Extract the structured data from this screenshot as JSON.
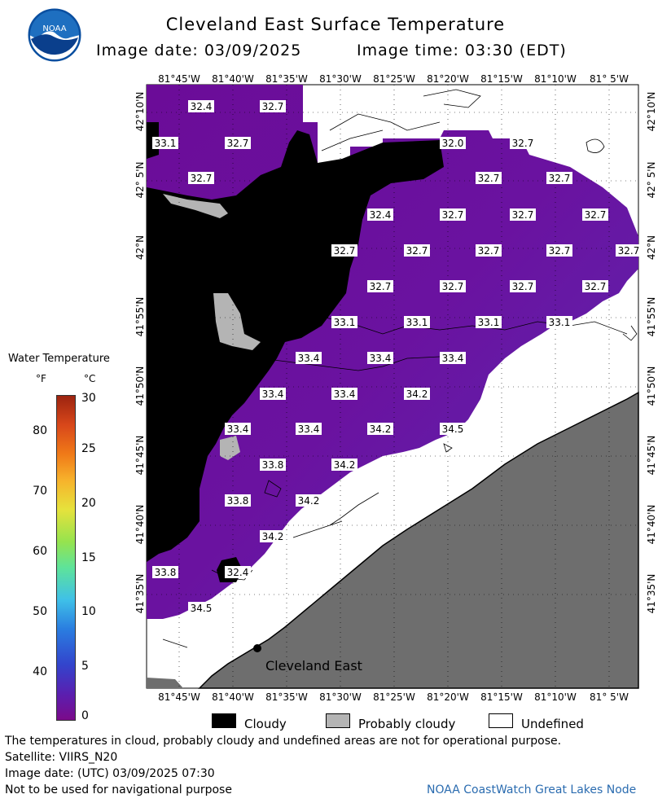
{
  "header": {
    "title": "Cleveland East Surface Temperature",
    "image_date": "Image date: 03/09/2025",
    "image_time": "Image time: 03:30 (EDT)"
  },
  "logo": {
    "text": "NOAA",
    "icon": "noaa-logo-icon"
  },
  "axes": {
    "longitude_ticks": [
      "81°45'W",
      "81°40'W",
      "81°35'W",
      "81°30'W",
      "81°25'W",
      "81°20'W",
      "81°15'W",
      "81°10'W",
      "81° 5'W"
    ],
    "latitude_ticks": [
      "42°10'N",
      "42° 5'N",
      "42°N",
      "41°55'N",
      "41°50'N",
      "41°45'N",
      "41°40'N",
      "41°35'N"
    ]
  },
  "temperature_labels": [
    "32.4",
    "32.7",
    "33.1",
    "32.7",
    "32.0",
    "32.7",
    "32.7",
    "32.7",
    "32.7",
    "32.4",
    "32.7",
    "32.7",
    "32.7",
    "32.7",
    "32.7",
    "32.7",
    "32.7",
    "32.7",
    "32.7",
    "32.7",
    "32.7",
    "32.7",
    "33.1",
    "33.1",
    "33.1",
    "33.1",
    "33.4",
    "33.4",
    "33.4",
    "33.4",
    "33.4",
    "34.2",
    "33.4",
    "33.4",
    "34.2",
    "34.5",
    "33.8",
    "34.2",
    "33.8",
    "34.2",
    "34.2",
    "33.8",
    "32.4",
    "34.5"
  ],
  "city": {
    "label": "Cleveland East"
  },
  "colorbar": {
    "title": "Water Temperature",
    "unit_f": "°F",
    "unit_c": "°C",
    "f_ticks": [
      "80",
      "70",
      "60",
      "50",
      "40"
    ],
    "c_ticks": [
      "30",
      "25",
      "20",
      "15",
      "10",
      "5",
      "0"
    ],
    "colors": {
      "low": "#7b0a8a",
      "high": "#9c2310"
    }
  },
  "legend": {
    "cloudy": "Cloudy",
    "probably_cloudy": "Probably cloudy",
    "undefined": "Undefined",
    "colors": {
      "cloudy": "#000000",
      "probably_cloudy": "#b4b4b4",
      "undefined": "#ffffff",
      "land": "#6e6e6e",
      "water": "#6a12a0"
    }
  },
  "footer": {
    "disclaimer": "The temperatures in cloud, probably cloudy and undefined areas are not for operational purpose.",
    "satellite": "Satellite: VIIRS_N20",
    "utc_date": "Image date: (UTC) 03/09/2025  07:30",
    "navigation": "Not to be used for navigational purpose",
    "credit": "NOAA CoastWatch Great Lakes Node"
  }
}
